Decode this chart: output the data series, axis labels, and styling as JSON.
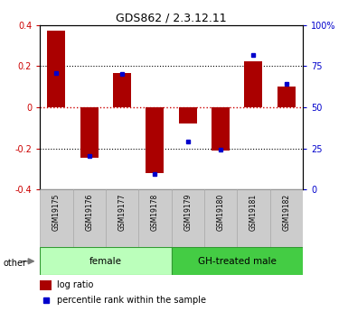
{
  "title": "GDS862 / 2.3.12.11",
  "samples": [
    "GSM19175",
    "GSM19176",
    "GSM19177",
    "GSM19178",
    "GSM19179",
    "GSM19180",
    "GSM19181",
    "GSM19182"
  ],
  "log_ratio": [
    0.37,
    -0.245,
    0.165,
    -0.32,
    -0.08,
    -0.21,
    0.225,
    0.1
  ],
  "percentile_rank": [
    0.165,
    -0.235,
    0.16,
    -0.325,
    -0.165,
    -0.205,
    0.255,
    0.115
  ],
  "groups": [
    {
      "label": "female",
      "start": 0,
      "end": 4,
      "color": "#bbffbb"
    },
    {
      "label": "GH-treated male",
      "start": 4,
      "end": 8,
      "color": "#44cc44"
    }
  ],
  "ylim": [
    -0.4,
    0.4
  ],
  "yticks_left": [
    -0.4,
    -0.2,
    0.0,
    0.2,
    0.4
  ],
  "yticks_right": [
    0,
    25,
    50,
    75,
    100
  ],
  "bar_color": "#aa0000",
  "dot_color": "#0000cc",
  "zero_line_color": "#cc0000",
  "grid_color": "#000000",
  "bg_color": "#ffffff",
  "plot_bg": "#ffffff",
  "tick_label_color_left": "#cc0000",
  "tick_label_color_right": "#0000cc",
  "legend_log_ratio_label": "log ratio",
  "legend_percentile_label": "percentile rank within the sample",
  "other_label": "other",
  "bar_width": 0.55,
  "label_box_color": "#cccccc",
  "label_box_edge": "#aaaaaa"
}
